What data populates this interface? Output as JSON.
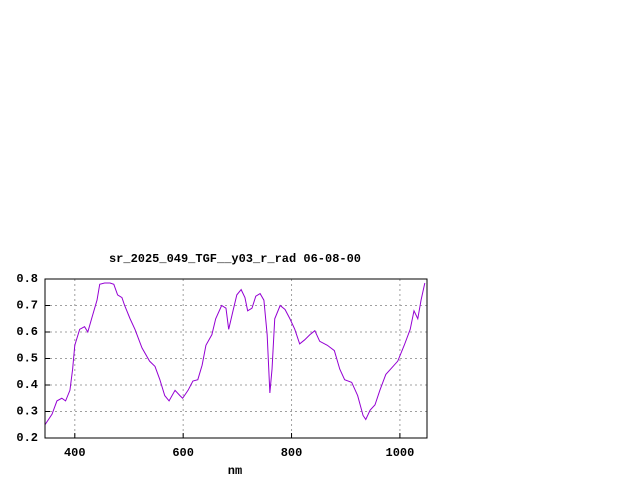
{
  "chart_data": {
    "type": "line",
    "title": "sr_2025_049_TGF__y03_r_rad 06-08-00",
    "x_label": "nm",
    "x": [
      345,
      358,
      367,
      376,
      383,
      391,
      396,
      400,
      409,
      418,
      424,
      431,
      441,
      446,
      455,
      465,
      472,
      479,
      487,
      492,
      502,
      511,
      524,
      538,
      548,
      557,
      566,
      574,
      585,
      594,
      599,
      609,
      618,
      627,
      635,
      642,
      653,
      660,
      671,
      679,
      684,
      692,
      699,
      707,
      714,
      719,
      727,
      734,
      742,
      749,
      755,
      760,
      764,
      769,
      779,
      788,
      797,
      806,
      815,
      824,
      834,
      843,
      852,
      866,
      879,
      889,
      898,
      911,
      922,
      932,
      937,
      945,
      954,
      963,
      974,
      985,
      996,
      1008,
      1019,
      1026,
      1033,
      1039,
      1046
    ],
    "series": [
      {
        "color": "#9400d3",
        "values": [
          0.25,
          0.29,
          0.34,
          0.35,
          0.34,
          0.38,
          0.46,
          0.55,
          0.61,
          0.62,
          0.6,
          0.65,
          0.72,
          0.78,
          0.785,
          0.785,
          0.78,
          0.74,
          0.73,
          0.7,
          0.65,
          0.61,
          0.54,
          0.49,
          0.47,
          0.42,
          0.36,
          0.34,
          0.38,
          0.36,
          0.35,
          0.38,
          0.415,
          0.42,
          0.475,
          0.55,
          0.59,
          0.65,
          0.7,
          0.69,
          0.61,
          0.68,
          0.74,
          0.76,
          0.73,
          0.68,
          0.69,
          0.735,
          0.745,
          0.72,
          0.59,
          0.37,
          0.46,
          0.65,
          0.7,
          0.685,
          0.65,
          0.61,
          0.555,
          0.57,
          0.59,
          0.605,
          0.565,
          0.55,
          0.53,
          0.46,
          0.42,
          0.41,
          0.36,
          0.285,
          0.27,
          0.305,
          0.325,
          0.38,
          0.44,
          0.465,
          0.49,
          0.55,
          0.61,
          0.68,
          0.65,
          0.72,
          0.785
        ]
      }
    ],
    "xlim": [
      345,
      1050
    ],
    "xticks": [
      400,
      600,
      800,
      1000
    ],
    "ylim": [
      0.2,
      0.8
    ],
    "yticks": [
      0.2,
      0.3,
      0.4,
      0.5,
      0.6,
      0.7,
      0.8
    ],
    "grid": true
  }
}
